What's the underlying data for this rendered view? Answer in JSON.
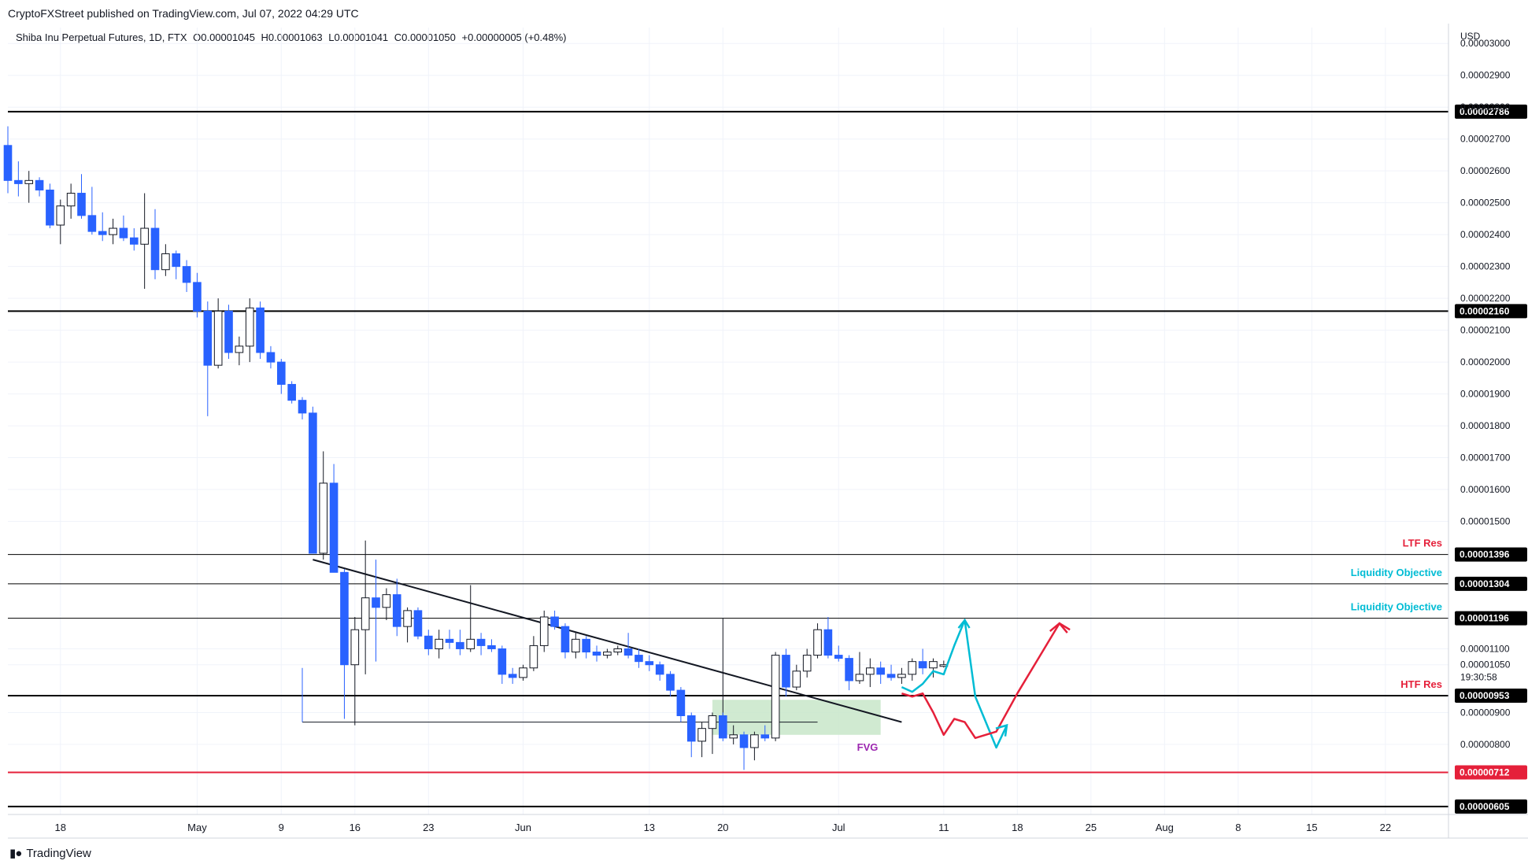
{
  "header": {
    "publisher": "CryptoFXStreet published on TradingView.com, Jul 07, 2022 04:29 UTC",
    "symbol": "Shiba Inu Perpetual Futures, 1D, FTX",
    "open": "O0.00001045",
    "high": "H0.00001063",
    "low": "L0.00001041",
    "close": "C0.00001050",
    "change": "+0.00000005 (+0.48%)"
  },
  "footer": {
    "brand": "TradingView"
  },
  "colors": {
    "up": "#ffffff",
    "down": "#2962ff",
    "wick": "#131722",
    "resistance": "#e5203a",
    "liquidity": "#00bcd4",
    "fvg_fill": "#c8e6c9",
    "fvg_text": "#9c27b0"
  },
  "chart_data": {
    "type": "candlestick",
    "currency": "USD",
    "ylim": [
      5.8e-06,
      3.05e-05
    ],
    "xlim": [
      "2022-04-13",
      "2022-08-28"
    ],
    "y_ticks": [
      "0.00003000",
      "0.00002900",
      "0.00002800",
      "0.00002700",
      "0.00002600",
      "0.00002500",
      "0.00002400",
      "0.00002300",
      "0.00002200",
      "0.00002100",
      "0.00002000",
      "0.00001900",
      "0.00001800",
      "0.00001700",
      "0.00001600",
      "0.00001500",
      "0.00001100",
      "0.00001050",
      "0.00000900",
      "0.00000800"
    ],
    "x_ticks": [
      {
        "date": "2022-04-18",
        "label": "18"
      },
      {
        "date": "2022-05-01",
        "label": "May"
      },
      {
        "date": "2022-05-09",
        "label": "9"
      },
      {
        "date": "2022-05-16",
        "label": "16"
      },
      {
        "date": "2022-05-23",
        "label": "23"
      },
      {
        "date": "2022-06-01",
        "label": "Jun"
      },
      {
        "date": "2022-06-13",
        "label": "13"
      },
      {
        "date": "2022-06-20",
        "label": "20"
      },
      {
        "date": "2022-07-01",
        "label": "Jul"
      },
      {
        "date": "2022-07-11",
        "label": "11"
      },
      {
        "date": "2022-07-18",
        "label": "18"
      },
      {
        "date": "2022-07-25",
        "label": "25"
      },
      {
        "date": "2022-08-01",
        "label": "Aug"
      },
      {
        "date": "2022-08-08",
        "label": "8"
      },
      {
        "date": "2022-08-15",
        "label": "15"
      },
      {
        "date": "2022-08-22",
        "label": "22"
      }
    ],
    "countdown": "19:30:58",
    "start_date": "2022-04-13",
    "candles": [
      [
        2.68e-05,
        2.74e-05,
        2.53e-05,
        2.57e-05
      ],
      [
        2.57e-05,
        2.63e-05,
        2.52e-05,
        2.56e-05
      ],
      [
        2.56e-05,
        2.6e-05,
        2.5e-05,
        2.57e-05
      ],
      [
        2.57e-05,
        2.58e-05,
        2.52e-05,
        2.54e-05
      ],
      [
        2.54e-05,
        2.56e-05,
        2.42e-05,
        2.43e-05
      ],
      [
        2.43e-05,
        2.51e-05,
        2.37e-05,
        2.49e-05
      ],
      [
        2.49e-05,
        2.56e-05,
        2.45e-05,
        2.53e-05
      ],
      [
        2.53e-05,
        2.59e-05,
        2.45e-05,
        2.46e-05
      ],
      [
        2.46e-05,
        2.55e-05,
        2.4e-05,
        2.41e-05
      ],
      [
        2.41e-05,
        2.47e-05,
        2.38e-05,
        2.4e-05
      ],
      [
        2.4e-05,
        2.45e-05,
        2.37e-05,
        2.42e-05
      ],
      [
        2.42e-05,
        2.46e-05,
        2.38e-05,
        2.39e-05
      ],
      [
        2.39e-05,
        2.42e-05,
        2.35e-05,
        2.37e-05
      ],
      [
        2.37e-05,
        2.53e-05,
        2.23e-05,
        2.42e-05
      ],
      [
        2.42e-05,
        2.48e-05,
        2.26e-05,
        2.29e-05
      ],
      [
        2.29e-05,
        2.37e-05,
        2.27e-05,
        2.34e-05
      ],
      [
        2.34e-05,
        2.35e-05,
        2.26e-05,
        2.3e-05
      ],
      [
        2.3e-05,
        2.32e-05,
        2.22e-05,
        2.25e-05
      ],
      [
        2.25e-05,
        2.28e-05,
        2.14e-05,
        2.16e-05
      ],
      [
        2.16e-05,
        2.19e-05,
        1.83e-05,
        1.99e-05
      ],
      [
        1.99e-05,
        2.2e-05,
        1.98e-05,
        2.16e-05
      ],
      [
        2.16e-05,
        2.18e-05,
        2.01e-05,
        2.03e-05
      ],
      [
        2.03e-05,
        2.08e-05,
        1.99e-05,
        2.05e-05
      ],
      [
        2.05e-05,
        2.2e-05,
        2e-05,
        2.17e-05
      ],
      [
        2.17e-05,
        2.19e-05,
        2.01e-05,
        2.03e-05
      ],
      [
        2.03e-05,
        2.05e-05,
        1.98e-05,
        2e-05
      ],
      [
        2e-05,
        2.01e-05,
        1.9e-05,
        1.93e-05
      ],
      [
        1.93e-05,
        1.94e-05,
        1.87e-05,
        1.88e-05
      ],
      [
        1.88e-05,
        1.89e-05,
        1.82e-05,
        1.84e-05
      ],
      [
        1.84e-05,
        1.86e-05,
        1.4e-05,
        1.4e-05
      ],
      [
        1.4e-05,
        1.72e-05,
        1.38e-05,
        1.62e-05
      ],
      [
        1.62e-05,
        1.68e-05,
        1.34e-05,
        1.34e-05
      ],
      [
        1.34e-05,
        1.35e-05,
        8.8e-06,
        1.05e-05
      ],
      [
        1.05e-05,
        1.2e-05,
        8.6e-06,
        1.16e-05
      ],
      [
        1.16e-05,
        1.44e-05,
        1.02e-05,
        1.26e-05
      ],
      [
        1.26e-05,
        1.38e-05,
        1.06e-05,
        1.23e-05
      ],
      [
        1.23e-05,
        1.29e-05,
        1.19e-05,
        1.27e-05
      ],
      [
        1.27e-05,
        1.32e-05,
        1.14e-05,
        1.17e-05
      ],
      [
        1.17e-05,
        1.23e-05,
        1.12e-05,
        1.22e-05
      ],
      [
        1.22e-05,
        1.23e-05,
        1.13e-05,
        1.14e-05
      ],
      [
        1.14e-05,
        1.16e-05,
        1.08e-05,
        1.1e-05
      ],
      [
        1.1e-05,
        1.16e-05,
        1.07e-05,
        1.13e-05
      ],
      [
        1.13e-05,
        1.16e-05,
        1.1e-05,
        1.12e-05
      ],
      [
        1.12e-05,
        1.16e-05,
        1.08e-05,
        1.1e-05
      ],
      [
        1.1e-05,
        1.3e-05,
        1.09e-05,
        1.13e-05
      ],
      [
        1.13e-05,
        1.15e-05,
        1.08e-05,
        1.11e-05
      ],
      [
        1.11e-05,
        1.13e-05,
        1.09e-05,
        1.1e-05
      ],
      [
        1.1e-05,
        1.11e-05,
        9.9e-06,
        1.02e-05
      ],
      [
        1.02e-05,
        1.04e-05,
        9.9e-06,
        1.01e-05
      ],
      [
        1.01e-05,
        1.05e-05,
        1e-05,
        1.04e-05
      ],
      [
        1.04e-05,
        1.14e-05,
        1.03e-05,
        1.11e-05
      ],
      [
        1.11e-05,
        1.22e-05,
        1.09e-05,
        1.2e-05
      ],
      [
        1.2e-05,
        1.22e-05,
        1.16e-05,
        1.17e-05
      ],
      [
        1.17e-05,
        1.18e-05,
        1.07e-05,
        1.09e-05
      ],
      [
        1.09e-05,
        1.15e-05,
        1.07e-05,
        1.13e-05
      ],
      [
        1.13e-05,
        1.14e-05,
        1.07e-05,
        1.09e-05
      ],
      [
        1.09e-05,
        1.11e-05,
        1.06e-05,
        1.08e-05
      ],
      [
        1.08e-05,
        1.1e-05,
        1.07e-05,
        1.09e-05
      ],
      [
        1.09e-05,
        1.11e-05,
        1.08e-05,
        1.1e-05
      ],
      [
        1.1e-05,
        1.15e-05,
        1.07e-05,
        1.08e-05
      ],
      [
        1.08e-05,
        1.1e-05,
        1.04e-05,
        1.06e-05
      ],
      [
        1.06e-05,
        1.08e-05,
        1.03e-05,
        1.05e-05
      ],
      [
        1.05e-05,
        1.06e-05,
        1e-05,
        1.02e-05
      ],
      [
        1.02e-05,
        1.03e-05,
        9.5e-06,
        9.7e-06
      ],
      [
        9.7e-06,
        9.8e-06,
        8.7e-06,
        8.9e-06
      ],
      [
        8.9e-06,
        9e-06,
        7.6e-06,
        8.1e-06
      ],
      [
        8.1e-06,
        8.7e-06,
        7.6e-06,
        8.5e-06
      ],
      [
        8.5e-06,
        9e-06,
        7.7e-06,
        8.9e-06
      ],
      [
        8.9e-06,
        9e-06,
        8.1e-06,
        8.2e-06
      ],
      [
        8.2e-06,
        8.6e-06,
        8e-06,
        8.3e-06
      ],
      [
        8.3e-06,
        8.4e-06,
        7.2e-06,
        7.9e-06
      ],
      [
        7.9e-06,
        8.4e-06,
        7.5e-06,
        8.3e-06
      ],
      [
        8.3e-06,
        8.6e-06,
        8.1e-06,
        8.2e-06
      ],
      [
        8.2e-06,
        1.09e-05,
        8.1e-06,
        1.08e-05
      ],
      [
        1.08e-05,
        1.1e-05,
        9.5e-06,
        9.8e-06
      ],
      [
        9.8e-06,
        1.05e-05,
        9.7e-06,
        1.03e-05
      ],
      [
        1.03e-05,
        1.1e-05,
        1.01e-05,
        1.08e-05
      ],
      [
        1.08e-05,
        1.18e-05,
        1.07e-05,
        1.16e-05
      ],
      [
        1.16e-05,
        1.2e-05,
        1.07e-05,
        1.08e-05
      ],
      [
        1.08e-05,
        1.11e-05,
        1.06e-05,
        1.07e-05
      ],
      [
        1.07e-05,
        1.08e-05,
        9.7e-06,
        1e-05
      ],
      [
        1e-05,
        1.09e-05,
        9.9e-06,
        1.02e-05
      ],
      [
        1.02e-05,
        1.07e-05,
        9.8e-06,
        1.04e-05
      ],
      [
        1.04e-05,
        1.06e-05,
        9.9e-06,
        1.02e-05
      ],
      [
        1.02e-05,
        1.05e-05,
        1e-05,
        1.01e-05
      ],
      [
        1.01e-05,
        1.04e-05,
        9.9e-06,
        1.02e-05
      ],
      [
        1.02e-05,
        1.07e-05,
        1e-05,
        1.06e-05
      ],
      [
        1.06e-05,
        1.1e-05,
        1.02e-05,
        1.04e-05
      ],
      [
        1.04e-05,
        1.07e-05,
        1.01e-05,
        1.06e-05
      ],
      [
        1.045e-05,
        1.063e-05,
        1.041e-05,
        1.05e-05
      ]
    ],
    "levels": [
      {
        "value": 2.786e-05,
        "label": "0.00002786",
        "color": "#000000",
        "note": ""
      },
      {
        "value": 2.16e-05,
        "label": "0.00002160",
        "color": "#000000",
        "note": ""
      },
      {
        "value": 1.396e-05,
        "label": "0.00001396",
        "color": "#000000",
        "note": "LTF Res"
      },
      {
        "value": 1.304e-05,
        "label": "0.00001304",
        "color": "#000000",
        "note": "Liquidity Objective"
      },
      {
        "value": 1.196e-05,
        "label": "0.00001196",
        "color": "#000000",
        "note": "Liquidity Objective"
      },
      {
        "value": 9.53e-06,
        "label": "0.00000953",
        "color": "#000000",
        "note": "HTF Res"
      },
      {
        "value": 7.12e-06,
        "label": "0.00000712",
        "color": "#e5203a",
        "note": ""
      },
      {
        "value": 6.05e-06,
        "label": "0.00000605",
        "color": "#000000",
        "note": ""
      }
    ],
    "fvg_label": "FVG",
    "fvg": {
      "from": "2022-06-19",
      "to": "2022-07-05",
      "y0": 8.3e-06,
      "y1": 9.4e-06
    },
    "trendline": [
      [
        "2022-05-12",
        1.38e-05
      ],
      [
        "2022-07-07",
        8.7e-06
      ]
    ],
    "liquidity_low_line": {
      "from": "2022-05-11",
      "to": "2022-06-29",
      "y": 8.7e-06
    },
    "range_box": {
      "from": "2022-06-20",
      "y": 1.196e-05
    },
    "projection_blue": [
      [
        "2022-07-07",
        9.8e-06
      ],
      [
        "2022-07-08",
        9.65e-06
      ],
      [
        "2022-07-09",
        9.9e-06
      ],
      [
        "2022-07-10",
        1.03e-05
      ],
      [
        "2022-07-11",
        1.02e-05
      ],
      [
        "2022-07-12",
        1.11e-05
      ],
      [
        "2022-07-13",
        1.19e-05
      ],
      [
        "2022-07-14",
        9.5e-06
      ],
      [
        "2022-07-15",
        8.7e-06
      ],
      [
        "2022-07-16",
        7.9e-06
      ],
      [
        "2022-07-17",
        8.6e-06
      ]
    ],
    "projection_red": [
      [
        "2022-07-07",
        9.6e-06
      ],
      [
        "2022-07-08",
        9.5e-06
      ],
      [
        "2022-07-09",
        9.6e-06
      ],
      [
        "2022-07-10",
        9e-06
      ],
      [
        "2022-07-11",
        8.3e-06
      ],
      [
        "2022-07-12",
        8.8e-06
      ],
      [
        "2022-07-13",
        8.7e-06
      ],
      [
        "2022-07-14",
        8.2e-06
      ],
      [
        "2022-07-16",
        8.4e-06
      ],
      [
        "2022-07-18",
        9.6e-06
      ],
      [
        "2022-07-20",
        1.07e-05
      ],
      [
        "2022-07-22",
        1.18e-05
      ],
      [
        "2022-07-23",
        1.16e-05
      ]
    ]
  }
}
